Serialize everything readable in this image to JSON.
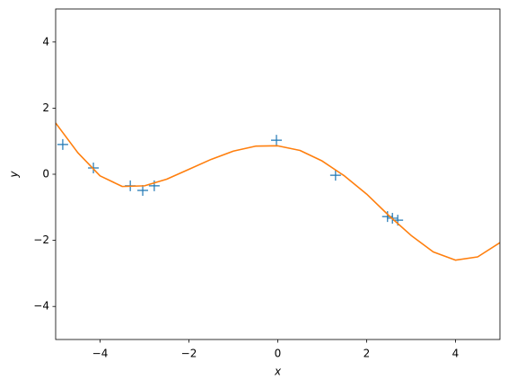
{
  "chart_data": {
    "type": "line",
    "xlabel": "x",
    "ylabel": "y",
    "xlim": [
      -5,
      5
    ],
    "ylim": [
      -5,
      5
    ],
    "xticks": [
      {
        "value": -4,
        "label": "−4"
      },
      {
        "value": -2,
        "label": "−2"
      },
      0,
      2,
      4
    ],
    "yticks": [
      {
        "value": -4,
        "label": "−4"
      },
      {
        "value": -2,
        "label": "−2"
      },
      0,
      2,
      4
    ],
    "grid": false,
    "series": [
      {
        "type": "scatter",
        "marker": "+",
        "color": "#1f77b4",
        "x": [
          -4.84,
          -4.15,
          -3.32,
          -3.04,
          -2.78,
          -0.03,
          1.3,
          2.47,
          2.58,
          2.7
        ],
        "values": [
          0.9,
          0.19,
          -0.35,
          -0.49,
          -0.35,
          1.03,
          -0.03,
          -1.28,
          -1.33,
          -1.39
        ]
      },
      {
        "type": "line",
        "color": "#ff7f0e",
        "x": [
          -5,
          -4.5,
          -4,
          -3.5,
          -3,
          -2.5,
          -2,
          -1.5,
          -1,
          -0.5,
          0,
          0.5,
          1,
          1.5,
          2,
          2.5,
          3,
          3.5,
          4,
          4.5,
          5
        ],
        "values": [
          1.55,
          0.65,
          -0.05,
          -0.37,
          -0.35,
          -0.15,
          0.15,
          0.45,
          0.7,
          0.85,
          0.86,
          0.72,
          0.4,
          -0.05,
          -0.6,
          -1.25,
          -1.85,
          -2.35,
          -2.6,
          -2.5,
          -2.07
        ]
      }
    ]
  }
}
